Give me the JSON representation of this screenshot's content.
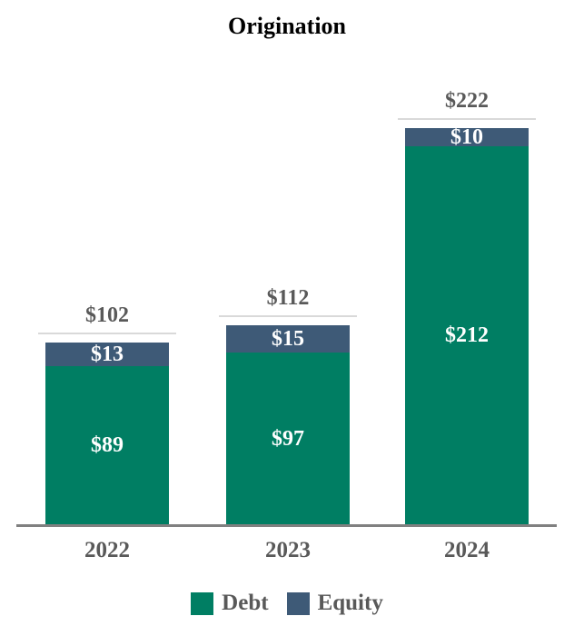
{
  "chart_data": {
    "type": "bar",
    "stacked": true,
    "title": "Origination",
    "categories": [
      "2022",
      "2023",
      "2024"
    ],
    "series": [
      {
        "name": "Debt",
        "color": "#007E63",
        "values": [
          89,
          97,
          212
        ],
        "labels": [
          "$89",
          "$97",
          "$212"
        ]
      },
      {
        "name": "Equity",
        "color": "#3E5A77",
        "values": [
          13,
          15,
          10
        ],
        "labels": [
          "$13",
          "$15",
          "$10"
        ]
      }
    ],
    "totals": [
      102,
      112,
      222
    ],
    "total_labels": [
      "$102",
      "$112",
      "$222"
    ],
    "value_prefix": "$",
    "ylim": [
      0,
      240
    ],
    "grid": false,
    "legend_position": "bottom"
  },
  "colors": {
    "debt": "#007E63",
    "equity": "#3E5A77",
    "label_gray": "#595959",
    "title_color": "#000000",
    "axis_line": "#808080",
    "total_marker": "#D9D9D9",
    "segment_label": "#FFFFFF"
  }
}
